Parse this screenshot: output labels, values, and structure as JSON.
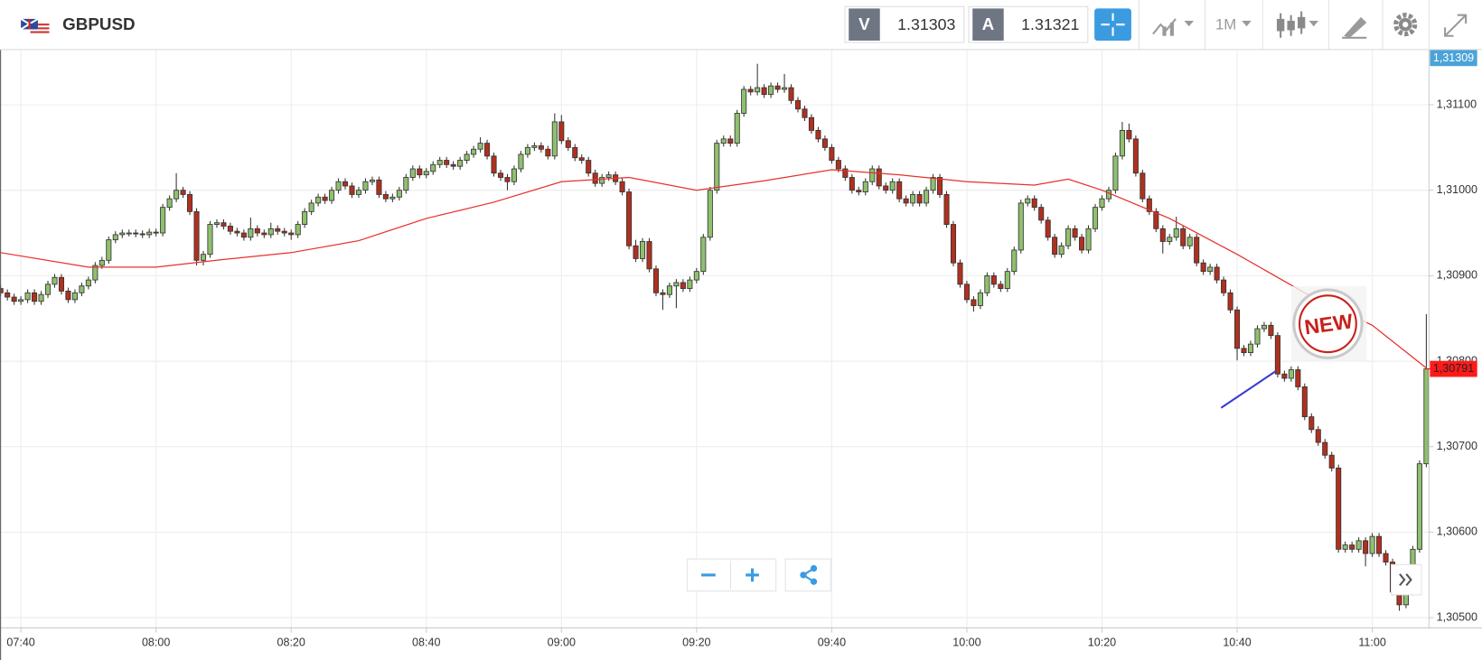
{
  "header": {
    "symbol": "GBPUSD",
    "bid_label": "V",
    "bid": "1.31303",
    "ask_label": "A",
    "ask": "1.31321",
    "interval": "1M"
  },
  "top_label": "1,31309",
  "sticker": "NEW",
  "chart_data": {
    "type": "candlestick",
    "up_color": "#8fc06e",
    "down_color": "#b0301f",
    "grid": true,
    "ylim": [
      1.30488,
      1.31164
    ],
    "yticks": [
      {
        "value": 1.311,
        "label": "1,31100"
      },
      {
        "value": 1.31,
        "label": "1,31000"
      },
      {
        "value": 1.309,
        "label": "1,30900"
      },
      {
        "value": 1.308,
        "label": "1,30800"
      },
      {
        "value": 1.307,
        "label": "1,30700"
      },
      {
        "value": 1.306,
        "label": "1,30600"
      },
      {
        "value": 1.305,
        "label": "1,30500"
      }
    ],
    "xticks": [
      "07:40",
      "08:00",
      "08:20",
      "08:40",
      "09:00",
      "09:20",
      "09:40",
      "10:00",
      "10:20",
      "10:40",
      "11:00"
    ],
    "last_price": {
      "value": 1.30791,
      "label": "1,30791"
    },
    "x": [
      "07:37",
      "07:38",
      "07:39",
      "07:40",
      "07:41",
      "07:42",
      "07:43",
      "07:44",
      "07:45",
      "07:46",
      "07:47",
      "07:48",
      "07:49",
      "07:50",
      "07:51",
      "07:52",
      "07:53",
      "07:54",
      "07:55",
      "07:56",
      "07:57",
      "07:58",
      "07:59",
      "08:00",
      "08:01",
      "08:02",
      "08:03",
      "08:04",
      "08:05",
      "08:06",
      "08:07",
      "08:08",
      "08:09",
      "08:10",
      "08:11",
      "08:12",
      "08:13",
      "08:14",
      "08:15",
      "08:16",
      "08:17",
      "08:18",
      "08:19",
      "08:20",
      "08:21",
      "08:22",
      "08:23",
      "08:24",
      "08:25",
      "08:26",
      "08:27",
      "08:28",
      "08:29",
      "08:30",
      "08:31",
      "08:32",
      "08:33",
      "08:34",
      "08:35",
      "08:36",
      "08:37",
      "08:38",
      "08:39",
      "08:40",
      "08:41",
      "08:42",
      "08:43",
      "08:44",
      "08:45",
      "08:46",
      "08:47",
      "08:48",
      "08:49",
      "08:50",
      "08:51",
      "08:52",
      "08:53",
      "08:54",
      "08:55",
      "08:56",
      "08:57",
      "08:58",
      "08:59",
      "09:00",
      "09:01",
      "09:02",
      "09:03",
      "09:04",
      "09:05",
      "09:06",
      "09:07",
      "09:08",
      "09:09",
      "09:10",
      "09:11",
      "09:12",
      "09:13",
      "09:14",
      "09:15",
      "09:16",
      "09:17",
      "09:18",
      "09:19",
      "09:20",
      "09:21",
      "09:22",
      "09:23",
      "09:24",
      "09:25",
      "09:26",
      "09:27",
      "09:28",
      "09:29",
      "09:30",
      "09:31",
      "09:32",
      "09:33",
      "09:34",
      "09:35",
      "09:36",
      "09:37",
      "09:38",
      "09:39",
      "09:40",
      "09:41",
      "09:42",
      "09:43",
      "09:44",
      "09:45",
      "09:46",
      "09:47",
      "09:48",
      "09:49",
      "09:50",
      "09:51",
      "09:52",
      "09:53",
      "09:54",
      "09:55",
      "09:56",
      "09:57",
      "09:58",
      "09:59",
      "10:00",
      "10:01",
      "10:02",
      "10:03",
      "10:04",
      "10:05",
      "10:06",
      "10:07",
      "10:08",
      "10:09",
      "10:10",
      "10:11",
      "10:12",
      "10:13",
      "10:14",
      "10:15",
      "10:16",
      "10:17",
      "10:18",
      "10:19",
      "10:20",
      "10:21",
      "10:22",
      "10:23",
      "10:24",
      "10:25",
      "10:26",
      "10:27",
      "10:28",
      "10:29",
      "10:30",
      "10:31",
      "10:32",
      "10:33",
      "10:34",
      "10:35",
      "10:36",
      "10:37",
      "10:38",
      "10:39",
      "10:40",
      "10:41",
      "10:42",
      "10:43",
      "10:44",
      "10:45",
      "10:46",
      "10:47",
      "10:48",
      "10:49",
      "10:50",
      "10:51",
      "10:52",
      "10:53",
      "10:54",
      "10:55",
      "10:56",
      "10:57",
      "10:58",
      "10:59",
      "11:00",
      "11:01",
      "11:02",
      "11:03",
      "11:04",
      "11:05",
      "11:06",
      "11:07",
      "11:08"
    ],
    "open": [
      1.30885,
      1.3088,
      1.30875,
      1.3087,
      1.30872,
      1.3088,
      1.3087,
      1.30878,
      1.3089,
      1.30898,
      1.30882,
      1.30872,
      1.3088,
      1.30888,
      1.30895,
      1.30912,
      1.30918,
      1.30942,
      1.30948,
      1.3095,
      1.3095,
      1.30949,
      1.30948,
      1.30951,
      1.3095,
      1.3098,
      1.3099,
      1.31,
      1.30995,
      1.30975,
      1.30918,
      1.30925,
      1.3096,
      1.30962,
      1.30958,
      1.30952,
      1.3095,
      1.30945,
      1.30955,
      1.3095,
      1.30948,
      1.30955,
      1.30952,
      1.3095,
      1.30948,
      1.3096,
      1.30975,
      1.30985,
      1.30992,
      1.30988,
      1.31,
      1.3101,
      1.31005,
      1.30995,
      1.31,
      1.3101,
      1.31012,
      1.30995,
      1.3099,
      1.30992,
      1.31,
      1.31015,
      1.31025,
      1.31018,
      1.31022,
      1.3103,
      1.31035,
      1.3103,
      1.31028,
      1.31035,
      1.31042,
      1.31048,
      1.31055,
      1.3104,
      1.3102,
      1.31015,
      1.3101,
      1.31025,
      1.31042,
      1.3105,
      1.31052,
      1.31048,
      1.3104,
      1.3108,
      1.31058,
      1.3105,
      1.31038,
      1.31035,
      1.3102,
      1.31008,
      1.31015,
      1.31018,
      1.3101,
      1.30998,
      1.30935,
      1.3092,
      1.3094,
      1.30908,
      1.3088,
      1.30878,
      1.30888,
      1.30892,
      1.30885,
      1.30895,
      1.30905,
      1.30945,
      1.31,
      1.31055,
      1.3106,
      1.31055,
      1.3109,
      1.31118,
      1.31115,
      1.3112,
      1.31112,
      1.31122,
      1.31118,
      1.3112,
      1.31105,
      1.31095,
      1.31085,
      1.3107,
      1.3106,
      1.3105,
      1.31035,
      1.31025,
      1.31015,
      1.31,
      1.30998,
      1.3101,
      1.31025,
      1.31005,
      1.31,
      1.3101,
      1.3099,
      1.30985,
      1.30995,
      1.30985,
      1.31,
      1.31015,
      1.30995,
      1.3096,
      1.30915,
      1.3089,
      1.30872,
      1.30865,
      1.3088,
      1.309,
      1.3089,
      1.30885,
      1.30905,
      1.3093,
      1.30985,
      1.3099,
      1.3098,
      1.30965,
      1.30945,
      1.30925,
      1.30935,
      1.30955,
      1.30945,
      1.3093,
      1.30955,
      1.3098,
      1.3099,
      1.31,
      1.3104,
      1.3107,
      1.3106,
      1.3102,
      1.3099,
      1.30975,
      1.30955,
      1.3094,
      1.30945,
      1.30955,
      1.30935,
      1.30945,
      1.30915,
      1.30905,
      1.3091,
      1.30895,
      1.3088,
      1.3086,
      1.30815,
      1.3081,
      1.3082,
      1.30838,
      1.30842,
      1.3083,
      1.30785,
      1.3078,
      1.3079,
      1.3077,
      1.30735,
      1.3072,
      1.30705,
      1.3069,
      1.30675,
      1.3058,
      1.30585,
      1.3058,
      1.3059,
      1.30575,
      1.30595,
      1.30575,
      1.30565,
      1.3053,
      1.30515,
      1.3053,
      1.3058,
      1.3068
    ],
    "high": [
      1.30889,
      1.30884,
      1.30879,
      1.30876,
      1.30884,
      1.30884,
      1.30882,
      1.30894,
      1.30902,
      1.30902,
      1.30886,
      1.30884,
      1.30892,
      1.30899,
      1.30916,
      1.30922,
      1.30946,
      1.30952,
      1.30954,
      1.30954,
      1.30954,
      1.30953,
      1.30955,
      1.30955,
      1.30984,
      1.30994,
      1.3102,
      1.31004,
      1.30999,
      1.30979,
      1.30929,
      1.30964,
      1.30966,
      1.30966,
      1.30962,
      1.30956,
      1.30954,
      1.30968,
      1.30959,
      1.30954,
      1.30962,
      1.30959,
      1.30956,
      1.30954,
      1.30964,
      1.30979,
      1.30989,
      1.30996,
      1.30996,
      1.31004,
      1.31014,
      1.31014,
      1.31009,
      1.31004,
      1.31014,
      1.31016,
      1.31016,
      1.30999,
      1.30996,
      1.31004,
      1.31019,
      1.31029,
      1.31029,
      1.31026,
      1.31034,
      1.31039,
      1.31039,
      1.31034,
      1.31039,
      1.31046,
      1.31052,
      1.31062,
      1.31059,
      1.31044,
      1.31024,
      1.31019,
      1.31029,
      1.31046,
      1.31054,
      1.31056,
      1.31056,
      1.31052,
      1.3109,
      1.31088,
      1.31062,
      1.31054,
      1.31042,
      1.31039,
      1.31024,
      1.31019,
      1.31022,
      1.31022,
      1.31014,
      1.31002,
      1.30942,
      1.30944,
      1.30944,
      1.30912,
      1.30884,
      1.30892,
      1.30896,
      1.30896,
      1.30899,
      1.30909,
      1.30949,
      1.31004,
      1.31059,
      1.31064,
      1.31064,
      1.31094,
      1.31122,
      1.31122,
      1.31148,
      1.31124,
      1.31126,
      1.31126,
      1.31136,
      1.31124,
      1.31109,
      1.31099,
      1.31089,
      1.31074,
      1.31064,
      1.31054,
      1.31039,
      1.31029,
      1.31019,
      1.31004,
      1.31014,
      1.31029,
      1.31029,
      1.31009,
      1.31014,
      1.31014,
      1.30994,
      1.30999,
      1.30999,
      1.31004,
      1.31019,
      1.31019,
      1.30999,
      1.30964,
      1.30919,
      1.30894,
      1.30876,
      1.30884,
      1.30904,
      1.30904,
      1.30894,
      1.30909,
      1.30934,
      1.30989,
      1.30994,
      1.30994,
      1.30984,
      1.30969,
      1.30949,
      1.30939,
      1.30959,
      1.30959,
      1.30949,
      1.30959,
      1.30984,
      1.30994,
      1.31004,
      1.31044,
      1.3108,
      1.31078,
      1.31064,
      1.31024,
      1.30994,
      1.30979,
      1.30959,
      1.30949,
      1.30969,
      1.30959,
      1.30949,
      1.30949,
      1.30919,
      1.30914,
      1.30914,
      1.30899,
      1.30884,
      1.30864,
      1.30819,
      1.30824,
      1.30842,
      1.30846,
      1.30846,
      1.30834,
      1.30789,
      1.30794,
      1.30794,
      1.30774,
      1.30739,
      1.30724,
      1.30709,
      1.30694,
      1.30679,
      1.30589,
      1.30589,
      1.30594,
      1.30594,
      1.30599,
      1.30599,
      1.30579,
      1.30569,
      1.30534,
      1.30534,
      1.30584,
      1.30684,
      1.30855
    ],
    "low": [
      1.30876,
      1.30871,
      1.30866,
      1.30866,
      1.30868,
      1.30866,
      1.30866,
      1.30874,
      1.30886,
      1.30878,
      1.30868,
      1.30868,
      1.30876,
      1.30884,
      1.30891,
      1.30908,
      1.30914,
      1.30938,
      1.30944,
      1.30946,
      1.30945,
      1.30944,
      1.30944,
      1.30946,
      1.30946,
      1.30976,
      1.30986,
      1.30991,
      1.30971,
      1.30912,
      1.30912,
      1.30921,
      1.30956,
      1.30954,
      1.30948,
      1.30946,
      1.30941,
      1.30941,
      1.30946,
      1.30944,
      1.30944,
      1.30948,
      1.30946,
      1.30942,
      1.30944,
      1.30956,
      1.30971,
      1.30981,
      1.30984,
      1.30984,
      1.30996,
      1.31001,
      1.30991,
      1.30991,
      1.30996,
      1.31006,
      1.30991,
      1.30986,
      1.30986,
      1.30988,
      1.30996,
      1.31011,
      1.31014,
      1.31014,
      1.31018,
      1.31026,
      1.31026,
      1.31024,
      1.31024,
      1.31031,
      1.31038,
      1.31044,
      1.31036,
      1.31016,
      1.31011,
      1.31,
      1.31006,
      1.31021,
      1.31038,
      1.31046,
      1.31044,
      1.31036,
      1.31036,
      1.31054,
      1.31046,
      1.31034,
      1.31031,
      1.31016,
      1.31004,
      1.31004,
      1.31011,
      1.31006,
      1.30994,
      1.30931,
      1.30916,
      1.30916,
      1.30904,
      1.30876,
      1.3086,
      1.30874,
      1.30862,
      1.30881,
      1.30881,
      1.30891,
      1.30901,
      1.30941,
      1.30996,
      1.31051,
      1.31051,
      1.31051,
      1.31086,
      1.31111,
      1.31111,
      1.31108,
      1.31108,
      1.31114,
      1.31114,
      1.31101,
      1.31091,
      1.31081,
      1.31066,
      1.31056,
      1.31046,
      1.31031,
      1.31021,
      1.31011,
      1.30996,
      1.30994,
      1.30994,
      1.31006,
      1.31001,
      1.30996,
      1.30996,
      1.30986,
      1.30981,
      1.30981,
      1.30981,
      1.30981,
      1.30996,
      1.30991,
      1.30956,
      1.30911,
      1.30886,
      1.30868,
      1.30858,
      1.30861,
      1.30876,
      1.30886,
      1.30881,
      1.30881,
      1.30901,
      1.30926,
      1.30981,
      1.30976,
      1.30961,
      1.30941,
      1.30921,
      1.30921,
      1.30931,
      1.30941,
      1.30926,
      1.30926,
      1.30951,
      1.30976,
      1.30986,
      1.30996,
      1.31036,
      1.31056,
      1.31016,
      1.30986,
      1.30971,
      1.30951,
      1.30926,
      1.30936,
      1.30941,
      1.30931,
      1.30931,
      1.30911,
      1.30901,
      1.30901,
      1.30891,
      1.30876,
      1.30856,
      1.30801,
      1.30806,
      1.30806,
      1.30816,
      1.30834,
      1.30826,
      1.30781,
      1.30776,
      1.30776,
      1.30766,
      1.30731,
      1.30716,
      1.30701,
      1.30686,
      1.30671,
      1.30576,
      1.30576,
      1.30576,
      1.30576,
      1.3056,
      1.30571,
      1.30571,
      1.30561,
      1.30526,
      1.30508,
      1.30511,
      1.30526,
      1.30576,
      1.30676
    ],
    "close": [
      1.3088,
      1.30875,
      1.3087,
      1.30872,
      1.3088,
      1.3087,
      1.30878,
      1.3089,
      1.30898,
      1.30882,
      1.30872,
      1.3088,
      1.30888,
      1.30895,
      1.30912,
      1.30918,
      1.30942,
      1.30948,
      1.3095,
      1.3095,
      1.30949,
      1.30948,
      1.30951,
      1.3095,
      1.3098,
      1.3099,
      1.31,
      1.30995,
      1.30975,
      1.30918,
      1.30925,
      1.3096,
      1.30962,
      1.30958,
      1.30952,
      1.3095,
      1.30945,
      1.30955,
      1.3095,
      1.30948,
      1.30955,
      1.30952,
      1.3095,
      1.30948,
      1.3096,
      1.30975,
      1.30985,
      1.30992,
      1.30988,
      1.31,
      1.3101,
      1.31005,
      1.30995,
      1.31,
      1.3101,
      1.31012,
      1.30995,
      1.3099,
      1.30992,
      1.31,
      1.31015,
      1.31025,
      1.31018,
      1.31022,
      1.3103,
      1.31035,
      1.3103,
      1.31028,
      1.31035,
      1.31042,
      1.31048,
      1.31055,
      1.3104,
      1.3102,
      1.31015,
      1.3101,
      1.31025,
      1.31042,
      1.3105,
      1.31052,
      1.31048,
      1.3104,
      1.3108,
      1.31058,
      1.3105,
      1.31038,
      1.31035,
      1.3102,
      1.31008,
      1.31015,
      1.31018,
      1.3101,
      1.30998,
      1.30935,
      1.3092,
      1.3094,
      1.30908,
      1.3088,
      1.30878,
      1.30888,
      1.30892,
      1.30885,
      1.30895,
      1.30905,
      1.30945,
      1.31,
      1.31055,
      1.3106,
      1.31055,
      1.3109,
      1.31118,
      1.31115,
      1.3112,
      1.31112,
      1.31122,
      1.31118,
      1.3112,
      1.31105,
      1.31095,
      1.31085,
      1.3107,
      1.3106,
      1.3105,
      1.31035,
      1.31025,
      1.31015,
      1.31,
      1.30998,
      1.3101,
      1.31025,
      1.31005,
      1.31,
      1.3101,
      1.3099,
      1.30985,
      1.30995,
      1.30985,
      1.31,
      1.31015,
      1.30995,
      1.3096,
      1.30915,
      1.3089,
      1.30872,
      1.30865,
      1.3088,
      1.309,
      1.3089,
      1.30885,
      1.30905,
      1.3093,
      1.30985,
      1.3099,
      1.3098,
      1.30965,
      1.30945,
      1.30925,
      1.30935,
      1.30955,
      1.30945,
      1.3093,
      1.30955,
      1.3098,
      1.3099,
      1.31,
      1.3104,
      1.3107,
      1.3106,
      1.3102,
      1.3099,
      1.30975,
      1.30955,
      1.3094,
      1.30945,
      1.30955,
      1.30935,
      1.30945,
      1.30915,
      1.30905,
      1.3091,
      1.30895,
      1.3088,
      1.3086,
      1.30815,
      1.3081,
      1.3082,
      1.30838,
      1.30842,
      1.3083,
      1.30785,
      1.3078,
      1.3079,
      1.3077,
      1.30735,
      1.3072,
      1.30705,
      1.3069,
      1.30675,
      1.3058,
      1.30585,
      1.3058,
      1.3059,
      1.30575,
      1.30595,
      1.30575,
      1.30565,
      1.3053,
      1.30515,
      1.3053,
      1.3058,
      1.3068,
      1.30791
    ],
    "ma": {
      "color": "#e8302c",
      "x": [
        "07:37",
        "07:50",
        "08:00",
        "08:10",
        "08:20",
        "08:30",
        "08:40",
        "08:50",
        "09:00",
        "09:10",
        "09:20",
        "09:30",
        "09:40",
        "09:50",
        "10:00",
        "10:10",
        "10:15",
        "10:20",
        "10:30",
        "10:40",
        "10:50",
        "11:00",
        "11:08"
      ],
      "values": [
        1.30927,
        1.3091,
        1.3091,
        1.30919,
        1.30927,
        1.30941,
        1.30967,
        1.30986,
        1.3101,
        1.31015,
        1.31,
        1.31011,
        1.31024,
        1.31018,
        1.3101,
        1.31006,
        1.31013,
        1.31,
        1.30967,
        1.30925,
        1.3088,
        1.30842,
        1.30792
      ]
    }
  }
}
